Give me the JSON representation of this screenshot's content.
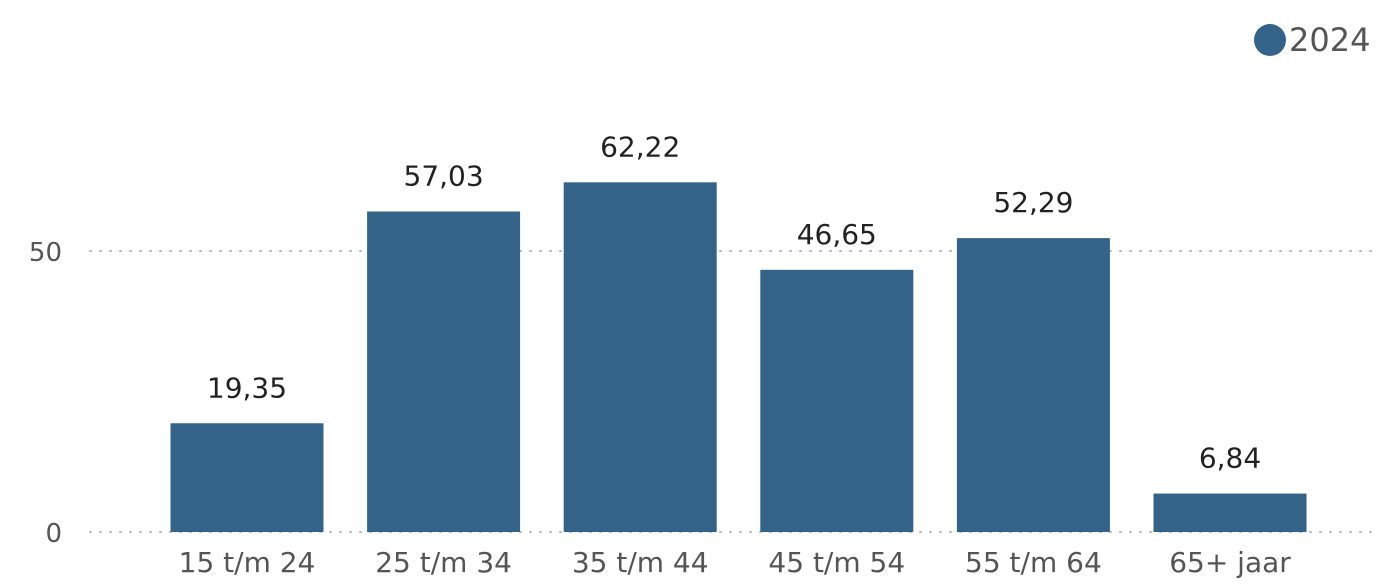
{
  "chart_data": {
    "type": "bar",
    "categories": [
      "15 t/m 24",
      "25 t/m 34",
      "35 t/m 44",
      "45 t/m 54",
      "55 t/m 64",
      "65+ jaar"
    ],
    "series": [
      {
        "name": "2024",
        "values": [
          19.35,
          57.03,
          62.22,
          46.65,
          52.29,
          6.84
        ],
        "color": "#336388"
      }
    ],
    "data_labels": [
      "19,35",
      "57,03",
      "62,22",
      "46,65",
      "52,29",
      "6,84"
    ],
    "yticks": [
      0,
      50
    ],
    "ytick_labels": [
      "0",
      "50"
    ],
    "ylim": [
      0,
      75
    ],
    "grid": true,
    "legend_position": "top-right"
  }
}
